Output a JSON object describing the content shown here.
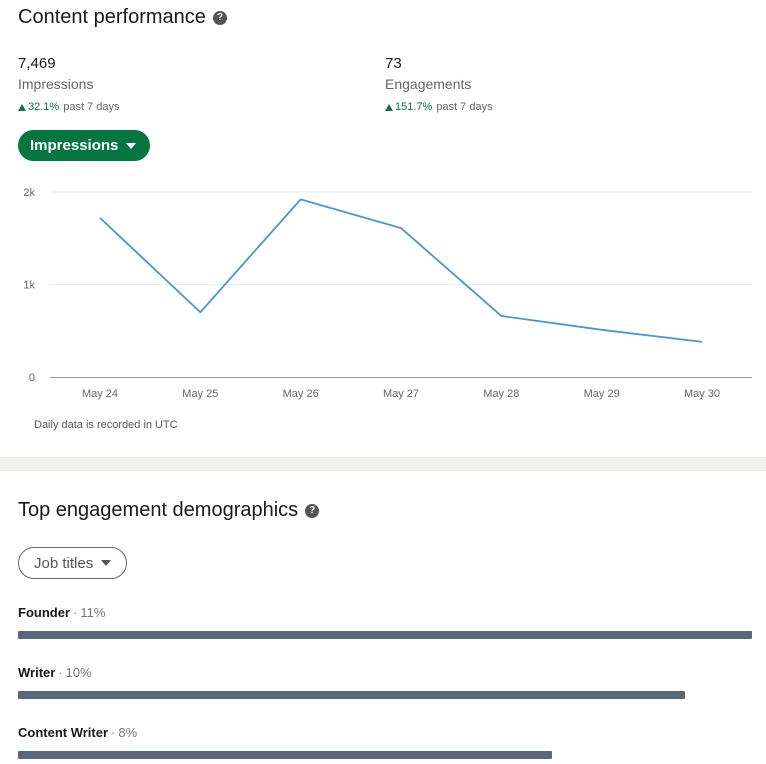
{
  "content_performance": {
    "title": "Content performance",
    "help_icon": "question-circle-icon",
    "metrics": [
      {
        "value": "7,469",
        "label": "Impressions",
        "change": "32.1%",
        "period": "past 7 days"
      },
      {
        "value": "73",
        "label": "Engagements",
        "change": "151.7%",
        "period": "past 7 days"
      }
    ],
    "metric_selector": "Impressions",
    "note": "Daily data is recorded in UTC"
  },
  "chart_data": {
    "type": "line",
    "title": "",
    "xlabel": "",
    "ylabel": "",
    "categories": [
      "May 24",
      "May 25",
      "May 26",
      "May 27",
      "May 28",
      "May 29",
      "May 30"
    ],
    "series": [
      {
        "name": "Impressions",
        "values": [
          1720,
          700,
          1920,
          1610,
          660,
          510,
          380
        ]
      }
    ],
    "ylim": [
      0,
      2000
    ],
    "y_ticks": [
      0,
      1000,
      2000
    ],
    "y_tick_labels": [
      "0",
      "1k",
      "2k"
    ],
    "grid": true,
    "line_color": "#4a95d6"
  },
  "demographics": {
    "title": "Top engagement demographics",
    "help_icon": "question-circle-icon",
    "selector": "Job titles",
    "items": [
      {
        "name": "Founder",
        "separator": "·",
        "percent_label": "11%",
        "share": 11
      },
      {
        "name": "Writer",
        "separator": "·",
        "percent_label": "10%",
        "share": 10
      },
      {
        "name": "Content Writer",
        "separator": "·",
        "percent_label": "8%",
        "share": 8
      }
    ],
    "bar_color": "#56687a"
  }
}
